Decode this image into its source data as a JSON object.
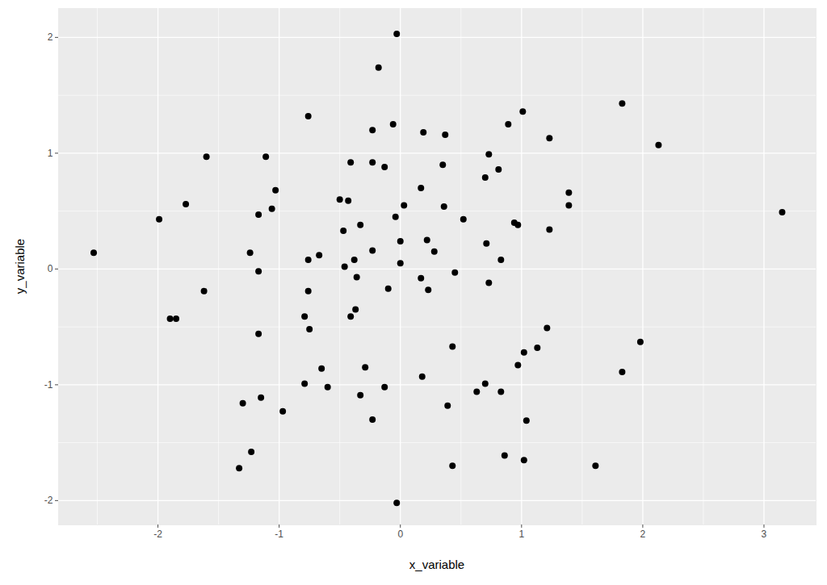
{
  "chart_data": {
    "type": "scatter",
    "x_label": "x_variable",
    "y_label": "y_variable",
    "x": [
      -2.53,
      -1.99,
      -1.77,
      -1.6,
      -1.62,
      -1.9,
      -1.85,
      -0.76,
      -1.11,
      -1.03,
      -1.06,
      -1.17,
      -1.24,
      -1.17,
      -0.76,
      -0.67,
      -0.76,
      -1.17,
      -0.79,
      -0.75,
      -1.3,
      -1.15,
      -0.97,
      -0.79,
      -0.65,
      -0.6,
      -1.23,
      -1.33,
      -0.23,
      -0.33,
      -0.29,
      -0.13,
      -0.03,
      -0.03,
      -0.18,
      -0.23,
      -0.06,
      -0.23,
      -0.41,
      -0.13,
      -0.5,
      -0.43,
      -0.33,
      -0.47,
      -0.46,
      -0.38,
      -0.36,
      -0.37,
      -0.41,
      -0.23,
      -0.04,
      0.0,
      0.03,
      0.0,
      -0.1,
      0.17,
      0.22,
      0.23,
      0.28,
      0.17,
      0.19,
      0.37,
      0.35,
      0.36,
      0.52,
      0.45,
      0.18,
      0.43,
      0.39,
      0.43,
      0.73,
      0.7,
      0.81,
      0.89,
      1.01,
      1.23,
      0.94,
      0.97,
      0.71,
      0.83,
      0.73,
      1.23,
      1.39,
      1.39,
      1.21,
      1.13,
      1.02,
      0.97,
      0.7,
      0.63,
      0.83,
      1.04,
      0.86,
      1.02,
      1.61,
      1.83,
      2.13,
      3.15,
      1.98,
      1.83
    ],
    "values": [
      0.14,
      0.43,
      0.56,
      0.97,
      -0.19,
      -0.43,
      -0.43,
      1.32,
      0.97,
      0.68,
      0.52,
      0.47,
      0.14,
      -0.02,
      0.08,
      0.12,
      -0.19,
      -0.56,
      -0.41,
      -0.52,
      -1.16,
      -1.11,
      -1.23,
      -0.99,
      -0.86,
      -1.02,
      -1.58,
      -1.72,
      -1.3,
      -1.09,
      -0.85,
      -1.02,
      -2.02,
      2.03,
      1.74,
      1.2,
      1.25,
      0.92,
      0.92,
      0.88,
      0.6,
      0.59,
      0.38,
      0.33,
      0.02,
      0.08,
      -0.07,
      -0.35,
      -0.41,
      0.16,
      0.45,
      0.24,
      0.55,
      0.05,
      -0.17,
      -0.08,
      0.25,
      -0.18,
      0.15,
      0.7,
      1.18,
      1.16,
      0.9,
      0.54,
      0.43,
      -0.03,
      -0.93,
      -0.67,
      -1.18,
      -1.7,
      0.99,
      0.79,
      0.86,
      1.25,
      1.36,
      1.13,
      0.4,
      0.38,
      0.22,
      0.08,
      -0.12,
      0.34,
      0.66,
      0.55,
      -0.51,
      -0.68,
      -0.72,
      -0.83,
      -0.99,
      -1.06,
      -1.06,
      -1.31,
      -1.61,
      -1.65,
      -1.7,
      1.43,
      1.07,
      0.49,
      -0.63,
      -0.89
    ],
    "color": "#000000",
    "xlim": [
      -2.82,
      3.43
    ],
    "ylim": [
      -2.21,
      2.25
    ],
    "xticks": [
      -2,
      -1,
      0,
      1,
      2,
      3
    ],
    "yticks": [
      -2,
      -1,
      0,
      1,
      2
    ],
    "grid": true
  }
}
